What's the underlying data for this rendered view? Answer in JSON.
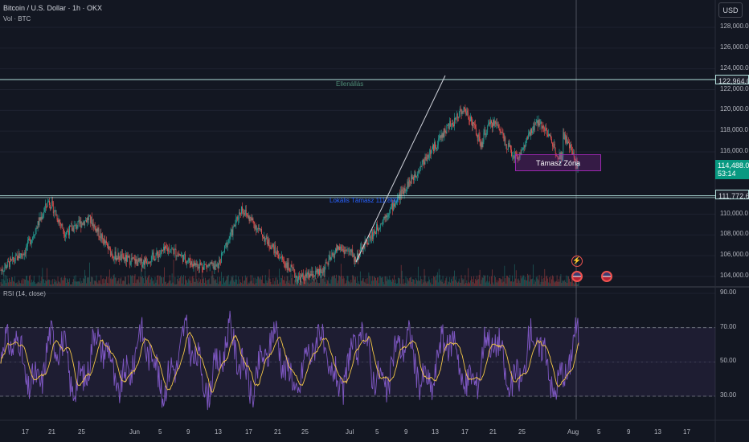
{
  "header": {
    "symbol": "Bitcoin / U.S. Dollar · 1h · OKX",
    "volume_label": "Vol · BTC",
    "currency": "USD"
  },
  "price_axis": {
    "ticks": [
      "128,000.0",
      "126,000.0",
      "124,000.0",
      "122,000.0",
      "120,000.0",
      "118,000.0",
      "116,000.0",
      "110,000.0",
      "108,000.0",
      "106,000.0",
      "104,000.0"
    ],
    "tick_values": [
      128000,
      126000,
      124000,
      122000,
      120000,
      118000,
      116000,
      110000,
      108000,
      106000,
      104000
    ]
  },
  "badges": {
    "resistance": "122,964.0",
    "current_price": "114,488.0",
    "countdown": "53:14",
    "support": "111,772.6"
  },
  "annotations": {
    "resistance_label": "Ellenállás",
    "support_label": "Lokális Támasz 111.800",
    "zone_label": "Támasz Zóna"
  },
  "rsi": {
    "title": "RSI (14, close)",
    "ticks": [
      "90.00",
      "70.00",
      "50.00",
      "30.00"
    ],
    "tick_values": [
      90,
      70,
      50,
      30
    ],
    "upper": 70,
    "lower": 30
  },
  "time_axis": {
    "labels": [
      "17",
      "21",
      "25",
      "Jun",
      "5",
      "9",
      "13",
      "17",
      "21",
      "25",
      "Jul",
      "5",
      "9",
      "13",
      "17",
      "21",
      "25",
      "Aug",
      "5",
      "9",
      "13",
      "17"
    ]
  },
  "colors": {
    "background": "#131722",
    "up": "#26a69a",
    "down": "#ef5350",
    "level_line": "#b2dfdb",
    "zone_border": "#9c27b0",
    "rsi_line": "#7e57c2",
    "rsi_ma": "#f7c948",
    "current_price": "#089981"
  },
  "icons": [
    "lightning-icon",
    "us-flag-icon",
    "us-flag-icon"
  ]
}
